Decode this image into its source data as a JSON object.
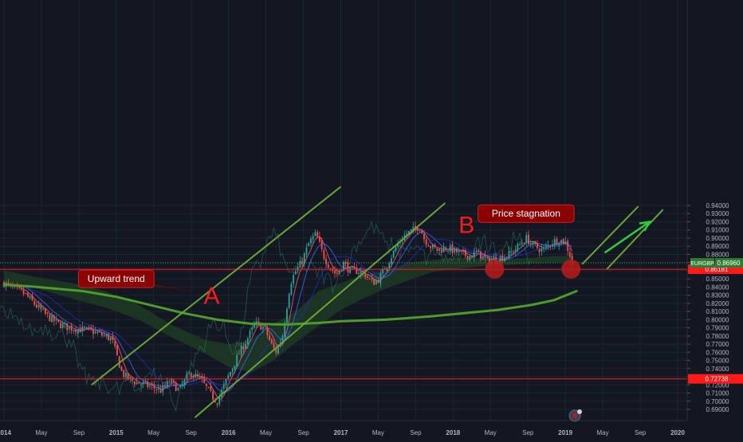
{
  "chart_data": {
    "type": "candlestick",
    "symbol": "EURGBP",
    "last_price": "0.86960",
    "x_axis": {
      "tick_labels": [
        "2014",
        "May",
        "Sep",
        "2015",
        "May",
        "Sep",
        "2016",
        "May",
        "Sep",
        "2017",
        "May",
        "Sep",
        "2018",
        "May",
        "Sep",
        "2019",
        "May",
        "Sep",
        "2020"
      ],
      "tick_dates": [
        2014.0,
        2014.333,
        2014.667,
        2015.0,
        2015.333,
        2015.667,
        2016.0,
        2016.333,
        2016.667,
        2017.0,
        2017.333,
        2017.667,
        2018.0,
        2018.333,
        2018.667,
        2019.0,
        2019.333,
        2019.667,
        2020.0
      ]
    },
    "y_axis": {
      "range": [
        0.68,
        0.94
      ],
      "tick_labels": [
        "0.69000",
        "0.70000",
        "0.71000",
        "0.72000",
        "0.73000",
        "0.74000",
        "0.75000",
        "0.76000",
        "0.77000",
        "0.78000",
        "0.79000",
        "0.80000",
        "0.81000",
        "0.82000",
        "0.83000",
        "0.84000",
        "0.85000",
        "0.86000",
        "0.87000",
        "0.88000",
        "0.89000",
        "0.90000",
        "0.91000",
        "0.92000",
        "0.93000",
        "0.94000"
      ],
      "tick_values": [
        0.69,
        0.7,
        0.71,
        0.72,
        0.73,
        0.74,
        0.75,
        0.76,
        0.77,
        0.78,
        0.79,
        0.8,
        0.81,
        0.82,
        0.83,
        0.84,
        0.85,
        0.86,
        0.87,
        0.88,
        0.89,
        0.9,
        0.91,
        0.92,
        0.93,
        0.94
      ]
    },
    "price_path": [
      [
        2014.0,
        0.845
      ],
      [
        2014.08,
        0.838
      ],
      [
        2014.18,
        0.832
      ],
      [
        2014.28,
        0.818
      ],
      [
        2014.38,
        0.805
      ],
      [
        2014.48,
        0.795
      ],
      [
        2014.58,
        0.79
      ],
      [
        2014.68,
        0.788
      ],
      [
        2014.78,
        0.786
      ],
      [
        2014.88,
        0.781
      ],
      [
        2014.96,
        0.776
      ],
      [
        2015.05,
        0.735
      ],
      [
        2015.1,
        0.728
      ],
      [
        2015.18,
        0.723
      ],
      [
        2015.3,
        0.718
      ],
      [
        2015.4,
        0.713
      ],
      [
        2015.48,
        0.725
      ],
      [
        2015.56,
        0.713
      ],
      [
        2015.66,
        0.735
      ],
      [
        2015.76,
        0.725
      ],
      [
        2015.86,
        0.705
      ],
      [
        2015.9,
        0.7
      ],
      [
        2015.98,
        0.725
      ],
      [
        2016.08,
        0.755
      ],
      [
        2016.16,
        0.775
      ],
      [
        2016.24,
        0.795
      ],
      [
        2016.32,
        0.79
      ],
      [
        2016.38,
        0.77
      ],
      [
        2016.42,
        0.76
      ],
      [
        2016.48,
        0.78
      ],
      [
        2016.55,
        0.845
      ],
      [
        2016.6,
        0.86
      ],
      [
        2016.65,
        0.87
      ],
      [
        2016.72,
        0.895
      ],
      [
        2016.78,
        0.905
      ],
      [
        2016.84,
        0.88
      ],
      [
        2016.9,
        0.865
      ],
      [
        2016.96,
        0.855
      ],
      [
        2017.02,
        0.87
      ],
      [
        2017.08,
        0.86
      ],
      [
        2017.15,
        0.86
      ],
      [
        2017.22,
        0.855
      ],
      [
        2017.28,
        0.845
      ],
      [
        2017.34,
        0.85
      ],
      [
        2017.4,
        0.865
      ],
      [
        2017.46,
        0.88
      ],
      [
        2017.52,
        0.895
      ],
      [
        2017.58,
        0.905
      ],
      [
        2017.65,
        0.91
      ],
      [
        2017.7,
        0.915
      ],
      [
        2017.74,
        0.9
      ],
      [
        2017.8,
        0.89
      ],
      [
        2017.86,
        0.885
      ],
      [
        2017.94,
        0.888
      ],
      [
        2018.0,
        0.885
      ],
      [
        2018.08,
        0.88
      ],
      [
        2018.15,
        0.878
      ],
      [
        2018.22,
        0.882
      ],
      [
        2018.3,
        0.872
      ],
      [
        2018.4,
        0.875
      ],
      [
        2018.5,
        0.88
      ],
      [
        2018.58,
        0.89
      ],
      [
        2018.65,
        0.9
      ],
      [
        2018.72,
        0.89
      ],
      [
        2018.8,
        0.885
      ],
      [
        2018.88,
        0.895
      ],
      [
        2018.94,
        0.898
      ],
      [
        2019.0,
        0.895
      ],
      [
        2019.04,
        0.88
      ],
      [
        2019.06,
        0.869
      ]
    ],
    "series": [
      {
        "kind": "moving-average-200",
        "points": [
          [
            2014.0,
            0.843
          ],
          [
            2014.3,
            0.84
          ],
          [
            2014.7,
            0.835
          ],
          [
            2015.0,
            0.828
          ],
          [
            2015.3,
            0.818
          ],
          [
            2015.6,
            0.808
          ],
          [
            2015.9,
            0.8
          ],
          [
            2016.2,
            0.795
          ],
          [
            2016.5,
            0.794
          ],
          [
            2016.8,
            0.796
          ],
          [
            2017.0,
            0.798
          ],
          [
            2017.4,
            0.8
          ],
          [
            2017.8,
            0.804
          ],
          [
            2018.1,
            0.808
          ],
          [
            2018.4,
            0.812
          ],
          [
            2018.7,
            0.818
          ],
          [
            2018.9,
            0.824
          ],
          [
            2019.1,
            0.835
          ]
        ]
      },
      {
        "kind": "cloud-upper",
        "points": [
          [
            2014.0,
            0.86
          ],
          [
            2014.3,
            0.852
          ],
          [
            2014.6,
            0.845
          ],
          [
            2014.9,
            0.835
          ],
          [
            2015.2,
            0.818
          ],
          [
            2015.5,
            0.793
          ],
          [
            2015.8,
            0.775
          ],
          [
            2016.0,
            0.77
          ],
          [
            2016.2,
            0.775
          ],
          [
            2016.4,
            0.795
          ],
          [
            2016.6,
            0.81
          ],
          [
            2016.8,
            0.835
          ],
          [
            2017.0,
            0.845
          ],
          [
            2017.2,
            0.855
          ],
          [
            2017.4,
            0.86
          ],
          [
            2017.6,
            0.87
          ],
          [
            2017.8,
            0.873
          ],
          [
            2018.0,
            0.876
          ],
          [
            2018.3,
            0.875
          ],
          [
            2018.6,
            0.875
          ],
          [
            2018.9,
            0.878
          ],
          [
            2019.05,
            0.878
          ]
        ]
      },
      {
        "kind": "cloud-lower",
        "points": [
          [
            2014.0,
            0.845
          ],
          [
            2014.3,
            0.838
          ],
          [
            2014.6,
            0.826
          ],
          [
            2014.9,
            0.815
          ],
          [
            2015.2,
            0.8
          ],
          [
            2015.5,
            0.778
          ],
          [
            2015.8,
            0.758
          ],
          [
            2016.0,
            0.742
          ],
          [
            2016.2,
            0.735
          ],
          [
            2016.4,
            0.75
          ],
          [
            2016.6,
            0.772
          ],
          [
            2016.8,
            0.792
          ],
          [
            2017.0,
            0.812
          ],
          [
            2017.2,
            0.826
          ],
          [
            2017.4,
            0.838
          ],
          [
            2017.6,
            0.848
          ],
          [
            2017.8,
            0.858
          ],
          [
            2018.0,
            0.862
          ],
          [
            2018.3,
            0.866
          ],
          [
            2018.6,
            0.868
          ],
          [
            2018.9,
            0.87
          ],
          [
            2019.05,
            0.871
          ]
        ]
      }
    ],
    "horizontal_lines": [
      {
        "value": 0.86181,
        "label": "0.86181",
        "color": "#ff1a1a"
      },
      {
        "value": 0.72738,
        "label": "0.72738",
        "color": "#ff1a1a"
      },
      {
        "value": 0.8696,
        "label": "",
        "color": "#4caf50",
        "style": "dotted"
      }
    ],
    "trend_channels": [
      [
        [
          2014.78,
          0.72
        ],
        [
          2017.0,
          0.963
        ]
      ],
      [
        [
          2015.7,
          0.68
        ],
        [
          2017.93,
          0.943
        ]
      ],
      [
        [
          2019.15,
          0.868
        ],
        [
          2019.65,
          0.939
        ]
      ],
      [
        [
          2019.37,
          0.862
        ],
        [
          2019.87,
          0.935
        ]
      ]
    ],
    "arrow": [
      [
        2019.35,
        0.882
      ],
      [
        2019.75,
        0.92
      ]
    ],
    "markers": [
      [
        2018.37,
        0.862
      ],
      [
        2019.05,
        0.862
      ]
    ],
    "annotations": [
      {
        "text": "Upward trend",
        "x": 2015.0,
        "y": 0.85,
        "tail": [
          2015.8,
          0.832
        ]
      },
      {
        "text": "Price stagnation",
        "x": 2018.65,
        "y": 0.93,
        "tail": [
          2018.25,
          0.922
        ]
      }
    ],
    "labels": [
      {
        "text": "A",
        "x": 2015.85,
        "y": 0.827
      },
      {
        "text": "B",
        "x": 2018.12,
        "y": 0.914
      }
    ]
  },
  "colors": {
    "background": "#131722",
    "candle_up": "#26a69a",
    "candle_down": "#ef5350",
    "trendline": "#6aa336",
    "arrow": "#2ecc40",
    "sma200": "#4e9a2a",
    "cloud_fill": "#1f3a24",
    "support": "#ff1a1a",
    "callout_bg": "#8b0000",
    "label_red": "#ff1a1a"
  },
  "logo_icon": "tradingview-logo-icon"
}
